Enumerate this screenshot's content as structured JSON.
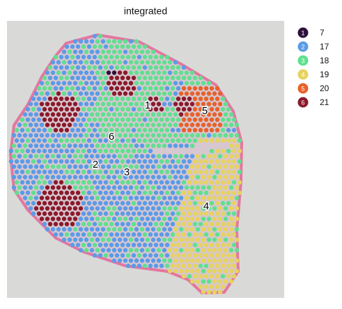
{
  "chart_data": {
    "type": "spatial",
    "title": "integrated",
    "series": [
      {
        "name": "7",
        "marker": "1",
        "color": "#2e0f3c"
      },
      {
        "name": "17",
        "marker": "2",
        "color": "#5b9be8"
      },
      {
        "name": "18",
        "marker": "3",
        "color": "#5fe08f"
      },
      {
        "name": "19",
        "marker": "4",
        "color": "#e6d35e"
      },
      {
        "name": "20",
        "marker": "5",
        "color": "#e6622a"
      },
      {
        "name": "21",
        "marker": "6",
        "color": "#8a1a2a"
      }
    ]
  }
}
